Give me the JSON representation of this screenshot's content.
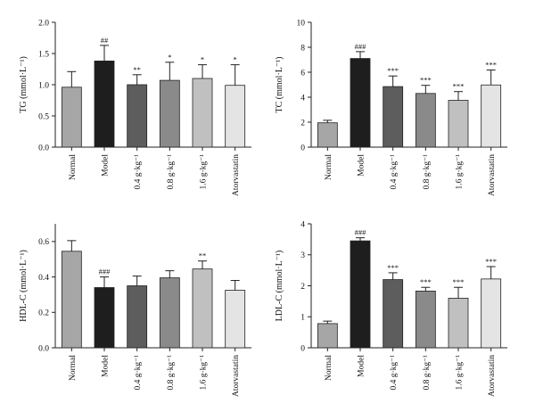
{
  "chart_data": [
    {
      "type": "bar",
      "ylabel": "TG (mmol·L⁻¹)",
      "ylim": [
        0,
        2.0
      ],
      "yticks": [
        "0.0",
        "0.5",
        "1.0",
        "1.5",
        "2.0"
      ],
      "categories": [
        "Normal",
        "Model",
        "0.4 g·kg⁻¹",
        "0.8 g·kg⁻¹",
        "1.6 g·kg⁻¹",
        "Atorvastatin"
      ],
      "values": [
        0.96,
        1.38,
        1.0,
        1.07,
        1.1,
        0.99
      ],
      "errors": [
        0.25,
        0.25,
        0.16,
        0.29,
        0.22,
        0.33
      ],
      "significance": [
        "",
        "##",
        "**",
        "*",
        "*",
        "*"
      ],
      "colors": [
        "#a6a6a6",
        "#1e1e1e",
        "#5d5d5d",
        "#8a8a8a",
        "#c0c0c0",
        "#e4e4e4"
      ]
    },
    {
      "type": "bar",
      "ylabel": "TC (mmol·L⁻¹)",
      "ylim": [
        0,
        10
      ],
      "yticks": [
        "0",
        "2",
        "4",
        "6",
        "8",
        "10"
      ],
      "categories": [
        "Normal",
        "Model",
        "0.4 g·kg⁻¹",
        "0.8 g·kg⁻¹",
        "1.6 g·kg⁻¹",
        "Atorvastatin"
      ],
      "values": [
        1.95,
        7.1,
        4.85,
        4.3,
        3.75,
        4.98
      ],
      "errors": [
        0.2,
        0.55,
        0.85,
        0.65,
        0.7,
        1.2
      ],
      "significance": [
        "",
        "###",
        "***",
        "***",
        "***",
        "***"
      ],
      "colors": [
        "#a6a6a6",
        "#1e1e1e",
        "#5d5d5d",
        "#8a8a8a",
        "#c0c0c0",
        "#e4e4e4"
      ]
    },
    {
      "type": "bar",
      "ylabel": "HDL-C (mmol·L⁻¹)",
      "ylim": [
        0,
        0.7
      ],
      "yticks": [
        "0.0",
        "0.2",
        "0.4",
        "0.6"
      ],
      "categories": [
        "Normal",
        "Model",
        "0.4 g·kg⁻¹",
        "0.8 g·kg⁻¹",
        "1.6 g·kg⁻¹",
        "Atorvastatin"
      ],
      "values": [
        0.545,
        0.34,
        0.35,
        0.395,
        0.445,
        0.325
      ],
      "errors": [
        0.06,
        0.06,
        0.055,
        0.04,
        0.045,
        0.055
      ],
      "significance": [
        "",
        "###",
        "",
        "",
        "**",
        ""
      ],
      "colors": [
        "#a6a6a6",
        "#1e1e1e",
        "#5d5d5d",
        "#8a8a8a",
        "#c0c0c0",
        "#e4e4e4"
      ]
    },
    {
      "type": "bar",
      "ylabel": "LDL-C (mmol·L⁻¹)",
      "ylim": [
        0,
        4
      ],
      "yticks": [
        "0",
        "1",
        "2",
        "3",
        "4"
      ],
      "categories": [
        "Normal",
        "Model",
        "0.4 g·kg⁻¹",
        "0.8 g·kg⁻¹",
        "1.6 g·kg⁻¹",
        "Atorvastatin"
      ],
      "values": [
        0.78,
        3.45,
        2.2,
        1.83,
        1.6,
        2.22
      ],
      "errors": [
        0.08,
        0.1,
        0.22,
        0.12,
        0.35,
        0.4
      ],
      "significance": [
        "",
        "###",
        "***",
        "***",
        "***",
        "***"
      ],
      "colors": [
        "#a6a6a6",
        "#1e1e1e",
        "#5d5d5d",
        "#8a8a8a",
        "#c0c0c0",
        "#e4e4e4"
      ]
    }
  ]
}
